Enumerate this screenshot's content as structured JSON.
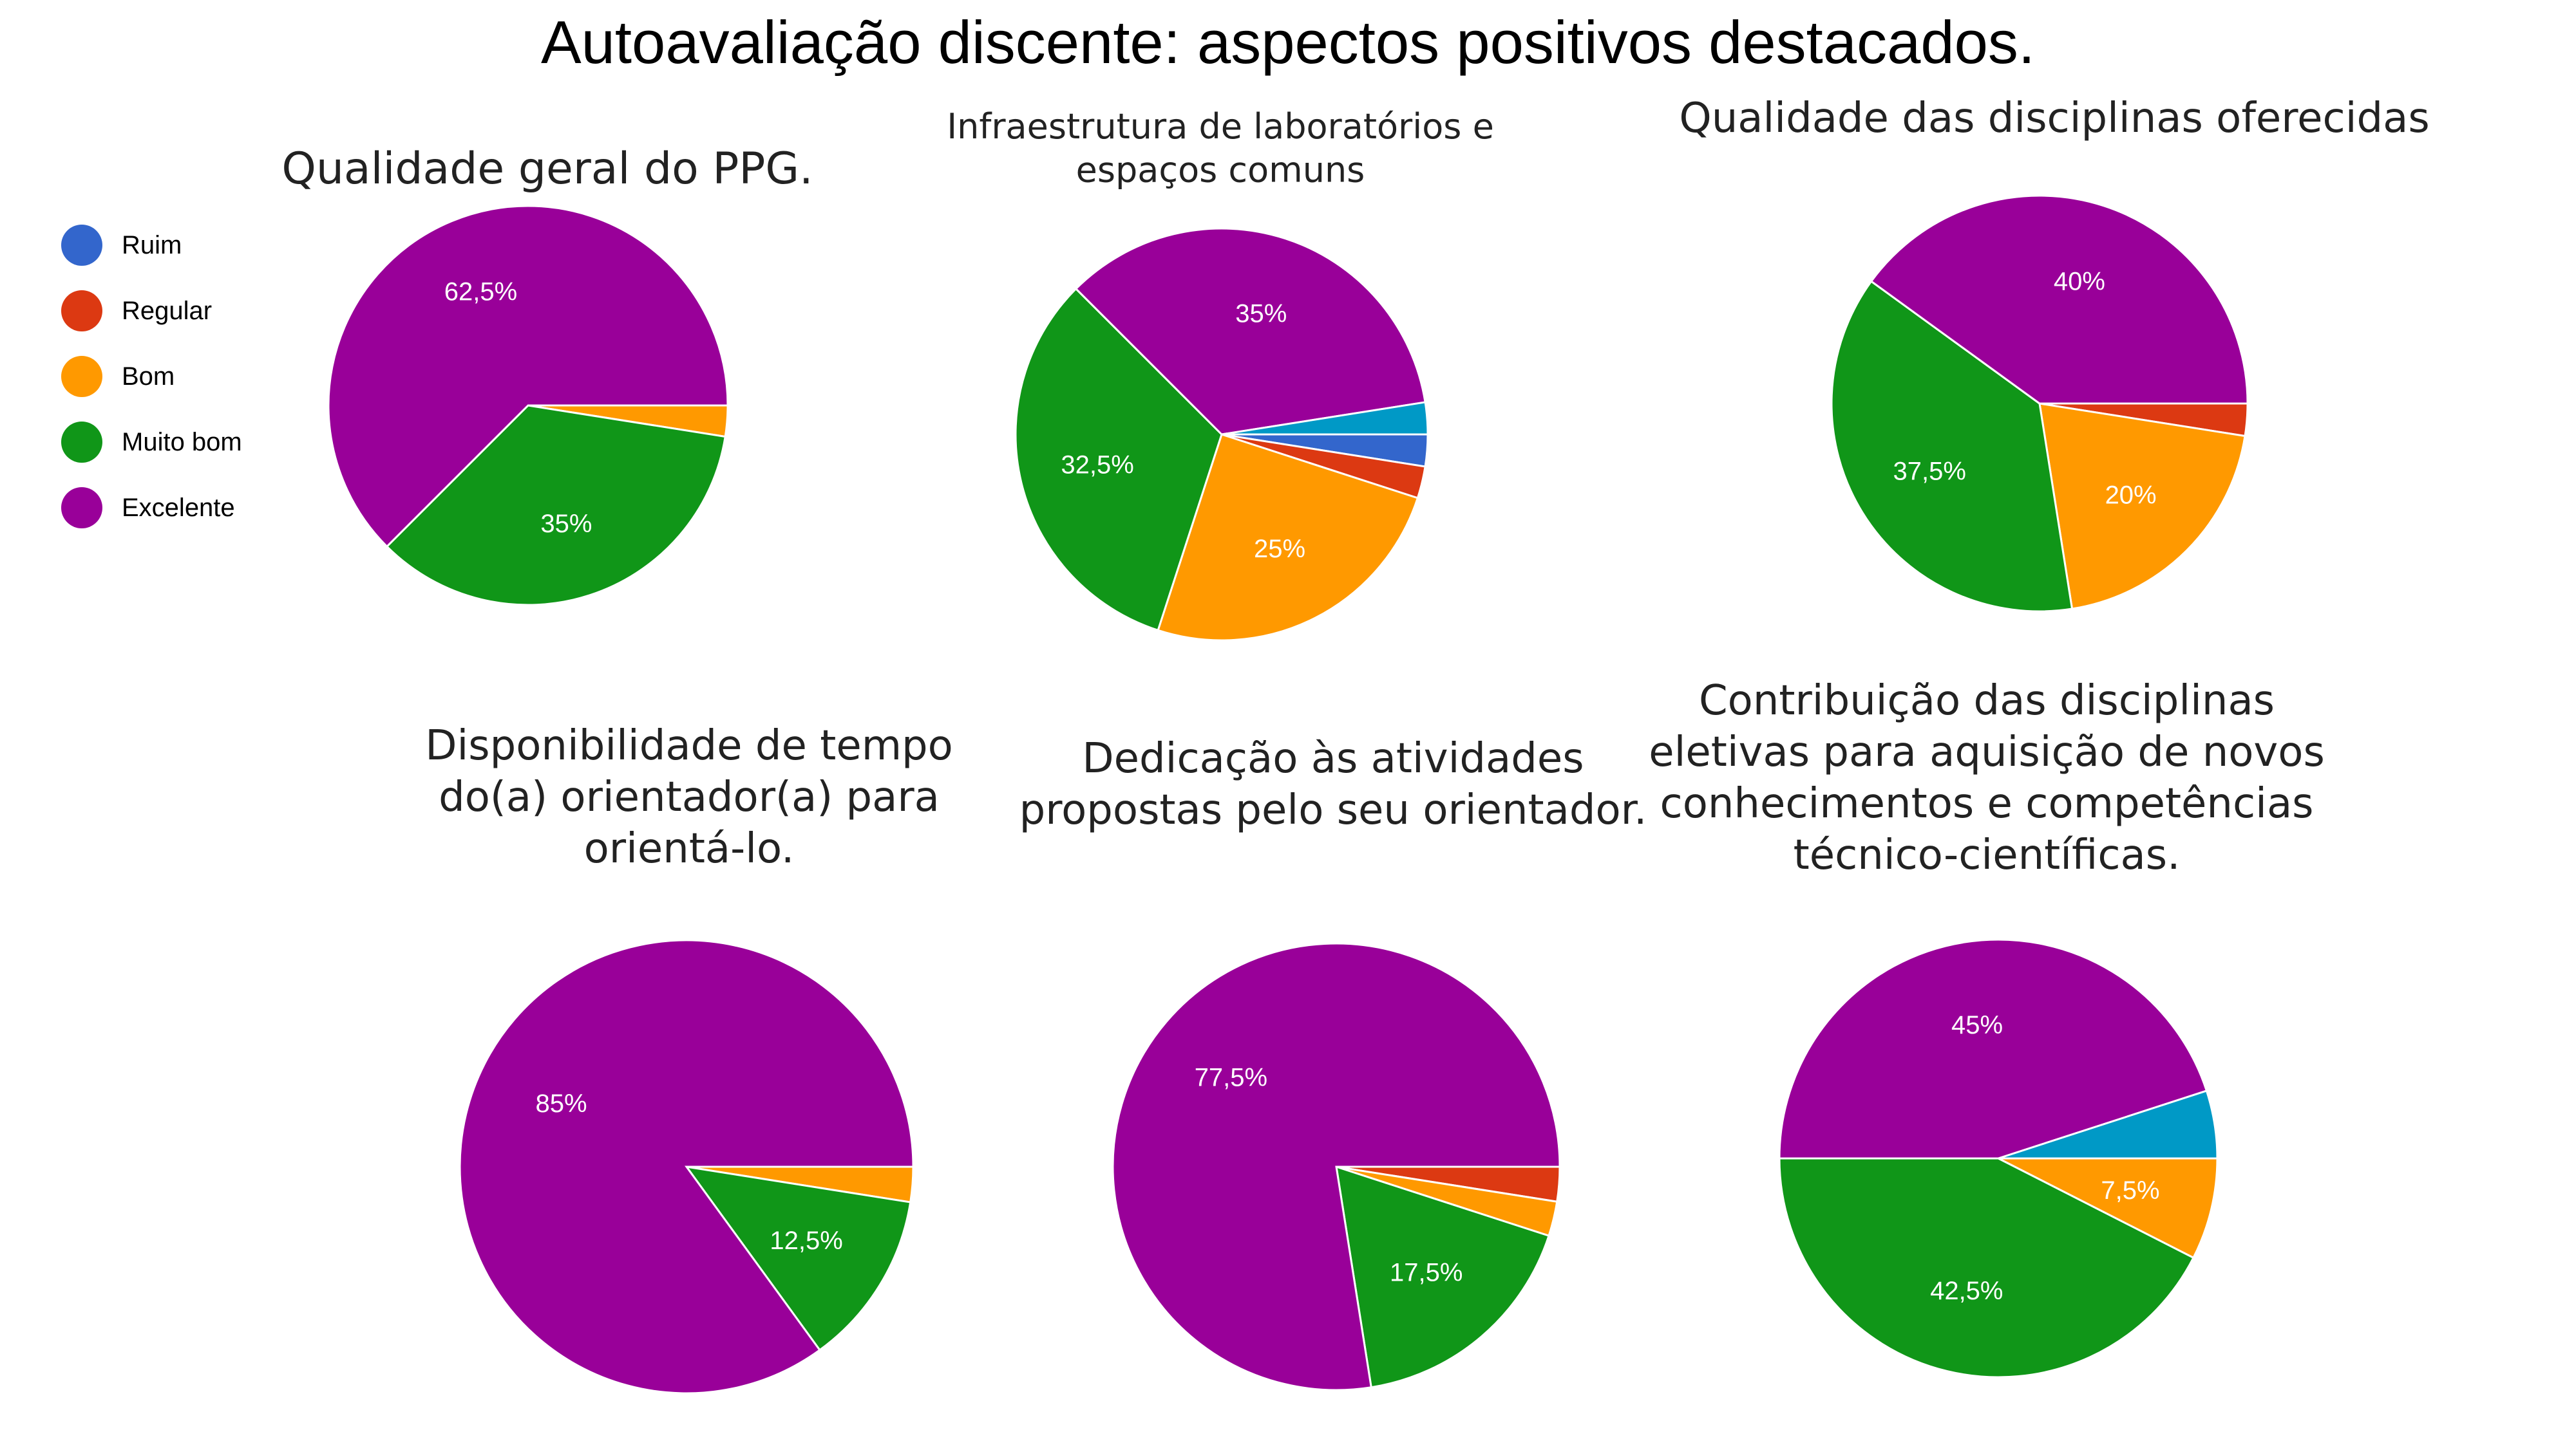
{
  "title": "Autoavaliação discente: aspectos positivos destacados.",
  "legend": [
    {
      "label": "Ruim",
      "color": "#3366cc"
    },
    {
      "label": "Regular",
      "color": "#dc3912"
    },
    {
      "label": "Bom",
      "color": "#ff9900"
    },
    {
      "label": "Muito bom",
      "color": "#109618"
    },
    {
      "label": "Excelente",
      "color": "#990099"
    }
  ],
  "chart_data": [
    {
      "type": "pie",
      "title": "Qualidade geral do PPG.",
      "slices": [
        {
          "category": "Bom",
          "value": 2.5,
          "color": "#ff9900",
          "label": ""
        },
        {
          "category": "Muito bom",
          "value": 35,
          "color": "#109618",
          "label": "35%"
        },
        {
          "category": "Excelente",
          "value": 62.5,
          "color": "#990099",
          "label": "62,5%"
        }
      ]
    },
    {
      "type": "pie",
      "title": "Infraestrutura de laboratórios e espaços comuns",
      "slices": [
        {
          "category": "Ruim",
          "value": 2.5,
          "color": "#3366cc",
          "label": ""
        },
        {
          "category": "Regular",
          "value": 2.5,
          "color": "#dc3912",
          "label": ""
        },
        {
          "category": "Bom",
          "value": 25,
          "color": "#ff9900",
          "label": "25%"
        },
        {
          "category": "Muito bom",
          "value": 32.5,
          "color": "#109618",
          "label": "32,5%"
        },
        {
          "category": "Excelente",
          "value": 35,
          "color": "#990099",
          "label": "35%"
        },
        {
          "category": "",
          "value": 2.5,
          "color": "#0099c6",
          "label": ""
        }
      ]
    },
    {
      "type": "pie",
      "title": "Qualidade das disciplinas oferecidas",
      "slices": [
        {
          "category": "Regular",
          "value": 2.5,
          "color": "#dc3912",
          "label": ""
        },
        {
          "category": "Bom",
          "value": 20,
          "color": "#ff9900",
          "label": "20%"
        },
        {
          "category": "Muito bom",
          "value": 37.5,
          "color": "#109618",
          "label": "37,5%"
        },
        {
          "category": "Excelente",
          "value": 40,
          "color": "#990099",
          "label": "40%"
        }
      ]
    },
    {
      "type": "pie",
      "title": "Disponibilidade de tempo do(a) orientador(a) para orientá-lo.",
      "slices": [
        {
          "category": "Bom",
          "value": 2.5,
          "color": "#ff9900",
          "label": ""
        },
        {
          "category": "Muito bom",
          "value": 12.5,
          "color": "#109618",
          "label": "12,5%"
        },
        {
          "category": "Excelente",
          "value": 85,
          "color": "#990099",
          "label": "85%"
        }
      ]
    },
    {
      "type": "pie",
      "title": "Dedicação às atividades propostas pelo seu orientador.",
      "slices": [
        {
          "category": "Regular",
          "value": 2.5,
          "color": "#dc3912",
          "label": ""
        },
        {
          "category": "Bom",
          "value": 2.5,
          "color": "#ff9900",
          "label": ""
        },
        {
          "category": "Muito bom",
          "value": 17.5,
          "color": "#109618",
          "label": "17,5%"
        },
        {
          "category": "Excelente",
          "value": 77.5,
          "color": "#990099",
          "label": "77,5%"
        }
      ]
    },
    {
      "type": "pie",
      "title": "Contribuição das disciplinas eletivas para aquisição de novos conhecimentos e competências técnico-científicas.",
      "slices": [
        {
          "category": "Bom",
          "value": 7.5,
          "color": "#ff9900",
          "label": "7,5%"
        },
        {
          "category": "Muito bom",
          "value": 42.5,
          "color": "#109618",
          "label": "42,5%"
        },
        {
          "category": "Excelente",
          "value": 45,
          "color": "#990099",
          "label": "45%"
        },
        {
          "category": "",
          "value": 5,
          "color": "#0099c6",
          "label": ""
        }
      ]
    }
  ]
}
